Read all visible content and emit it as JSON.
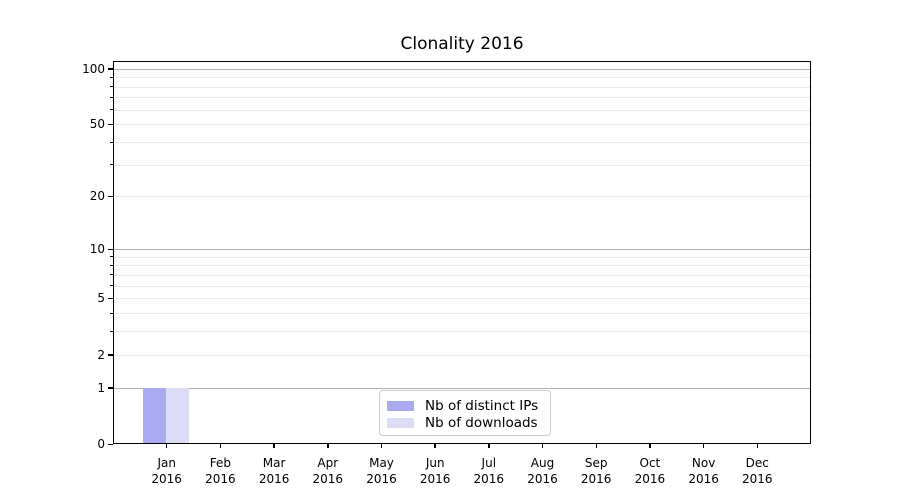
{
  "chart_data": {
    "type": "bar",
    "title": "Clonality 2016",
    "year": "2016",
    "categories": [
      "Jan",
      "Feb",
      "Mar",
      "Apr",
      "May",
      "Jun",
      "Jul",
      "Aug",
      "Sep",
      "Oct",
      "Nov",
      "Dec"
    ],
    "series": [
      {
        "name": "Nb of distinct IPs",
        "color": "#aaaaf0",
        "values": [
          1,
          0,
          0,
          0,
          0,
          0,
          0,
          0,
          0,
          0,
          0,
          0
        ]
      },
      {
        "name": "Nb of downloads",
        "color": "#dcdcf6",
        "values": [
          1,
          0,
          0,
          0,
          0,
          0,
          0,
          0,
          0,
          0,
          0,
          0
        ]
      }
    ],
    "yscale": "log1p",
    "ylim": [
      0,
      110
    ],
    "yticks_labeled": [
      0,
      1,
      2,
      5,
      10,
      20,
      50,
      100
    ],
    "yticks_major_grid": [
      1,
      10,
      100
    ],
    "yticks_minor_grid": [
      2,
      3,
      4,
      5,
      6,
      7,
      8,
      9,
      20,
      30,
      40,
      50,
      60,
      70,
      80,
      90
    ],
    "grid": true,
    "legend": {
      "position": "lower-center"
    }
  },
  "colors": {
    "background": "#ffffff",
    "spine": "#000000",
    "text": "#000000",
    "major_grid": "#b0b0b0",
    "minor_grid": "#ebebeb",
    "legend_border": "#cccccc"
  }
}
